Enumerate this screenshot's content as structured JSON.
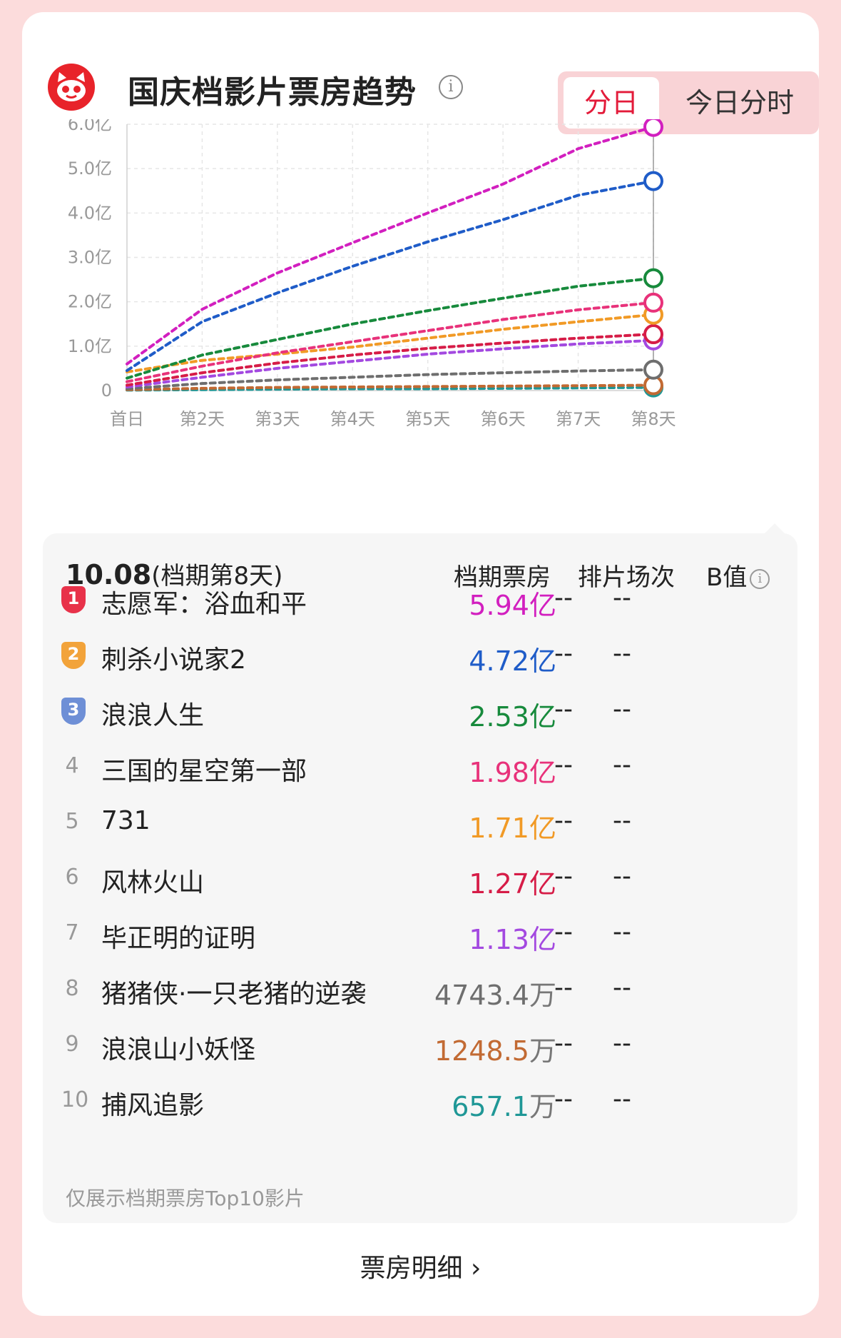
{
  "header": {
    "title": "国庆档影片票房趋势",
    "info_glyph": "i",
    "toggle_active": "分日",
    "toggle_other": "今日分时"
  },
  "chart_data": {
    "type": "line",
    "title": "国庆档影片票房趋势",
    "categories": [
      "首日",
      "第2天",
      "第3天",
      "第4天",
      "第5天",
      "第6天",
      "第7天",
      "第8天"
    ],
    "y_ticks": [
      "0",
      "1.0亿",
      "2.0亿",
      "3.0亿",
      "4.0亿",
      "5.0亿",
      "6.0亿"
    ],
    "ylim": [
      0,
      6.0
    ],
    "y_unit": "亿",
    "grid": true,
    "line_style": "dashed",
    "series": [
      {
        "name": "志愿军：浴血和平",
        "color": "#d21fbf",
        "values": [
          0.6,
          1.83,
          2.65,
          3.33,
          4.0,
          4.65,
          5.45,
          5.94
        ]
      },
      {
        "name": "刺杀小说家2",
        "color": "#1f5cc8",
        "values": [
          0.45,
          1.55,
          2.2,
          2.8,
          3.35,
          3.85,
          4.4,
          4.72
        ]
      },
      {
        "name": "浪浪人生",
        "color": "#178a3c",
        "values": [
          0.28,
          0.8,
          1.15,
          1.5,
          1.8,
          2.08,
          2.35,
          2.53
        ]
      },
      {
        "name": "三国的星空第一部",
        "color": "#e8327a",
        "values": [
          0.2,
          0.55,
          0.85,
          1.1,
          1.35,
          1.6,
          1.82,
          1.98
        ]
      },
      {
        "name": "731",
        "color": "#f19a26",
        "values": [
          0.42,
          0.68,
          0.82,
          0.98,
          1.18,
          1.38,
          1.55,
          1.71
        ]
      },
      {
        "name": "风林火山",
        "color": "#d61c47",
        "values": [
          0.12,
          0.4,
          0.62,
          0.8,
          0.95,
          1.07,
          1.18,
          1.27
        ]
      },
      {
        "name": "毕正明的证明",
        "color": "#a349e0",
        "values": [
          0.08,
          0.3,
          0.5,
          0.66,
          0.82,
          0.94,
          1.05,
          1.13
        ]
      },
      {
        "name": "猪猪侠·一只老猪的逆袭",
        "color": "#6e6e6e",
        "values": [
          0.04,
          0.16,
          0.24,
          0.3,
          0.36,
          0.4,
          0.44,
          0.47
        ]
      },
      {
        "name": "浪浪山小妖怪",
        "color": "#c26a33",
        "values": [
          0.02,
          0.05,
          0.07,
          0.08,
          0.09,
          0.1,
          0.11,
          0.12
        ]
      },
      {
        "name": "捕风追影",
        "color": "#1f9796",
        "values": [
          0.01,
          0.02,
          0.03,
          0.04,
          0.04,
          0.05,
          0.06,
          0.07
        ]
      }
    ]
  },
  "panel": {
    "date": "10.08",
    "date_suffix": "(档期第8天)",
    "col_box_office": "档期票房",
    "col_screenings": "排片场次",
    "col_b_value": "B值",
    "rows": [
      {
        "rank": "1",
        "name": "志愿军：浴血和平",
        "value": "5.94",
        "unit": "亿",
        "color": "#d21fbf",
        "screenings": "--",
        "b": "--",
        "badge_color": "#e8324a"
      },
      {
        "rank": "2",
        "name": "刺杀小说家2",
        "value": "4.72",
        "unit": "亿",
        "color": "#1f5cc8",
        "screenings": "--",
        "b": "--",
        "badge_color": "#f2a33a"
      },
      {
        "rank": "3",
        "name": "浪浪人生",
        "value": "2.53",
        "unit": "亿",
        "color": "#178a3c",
        "screenings": "--",
        "b": "--",
        "badge_color": "#6e8fd6"
      },
      {
        "rank": "4",
        "name": "三国的星空第一部",
        "value": "1.98",
        "unit": "亿",
        "color": "#e8327a",
        "screenings": "--",
        "b": "--"
      },
      {
        "rank": "5",
        "name": "731",
        "value": "1.71",
        "unit": "亿",
        "color": "#f19a26",
        "screenings": "--",
        "b": "--"
      },
      {
        "rank": "6",
        "name": "风林火山",
        "value": "1.27",
        "unit": "亿",
        "color": "#d61c47",
        "screenings": "--",
        "b": "--"
      },
      {
        "rank": "7",
        "name": "毕正明的证明",
        "value": "1.13",
        "unit": "亿",
        "color": "#a349e0",
        "screenings": "--",
        "b": "--"
      },
      {
        "rank": "8",
        "name": "猪猪侠·一只老猪的逆袭",
        "value": "4743.4",
        "unit": "万",
        "color": "#6e6e6e",
        "screenings": "--",
        "b": "--"
      },
      {
        "rank": "9",
        "name": "浪浪山小妖怪",
        "value": "1248.5",
        "unit": "万",
        "color": "#c26a33",
        "screenings": "--",
        "b": "--"
      },
      {
        "rank": "10",
        "name": "捕风追影",
        "value": "657.1",
        "unit": "万",
        "color": "#1f9796",
        "screenings": "--",
        "b": "--"
      }
    ],
    "note": "仅展示档期票房Top10影片"
  },
  "footer": {
    "detail_label": "票房明细",
    "detail_chevron": "›"
  }
}
